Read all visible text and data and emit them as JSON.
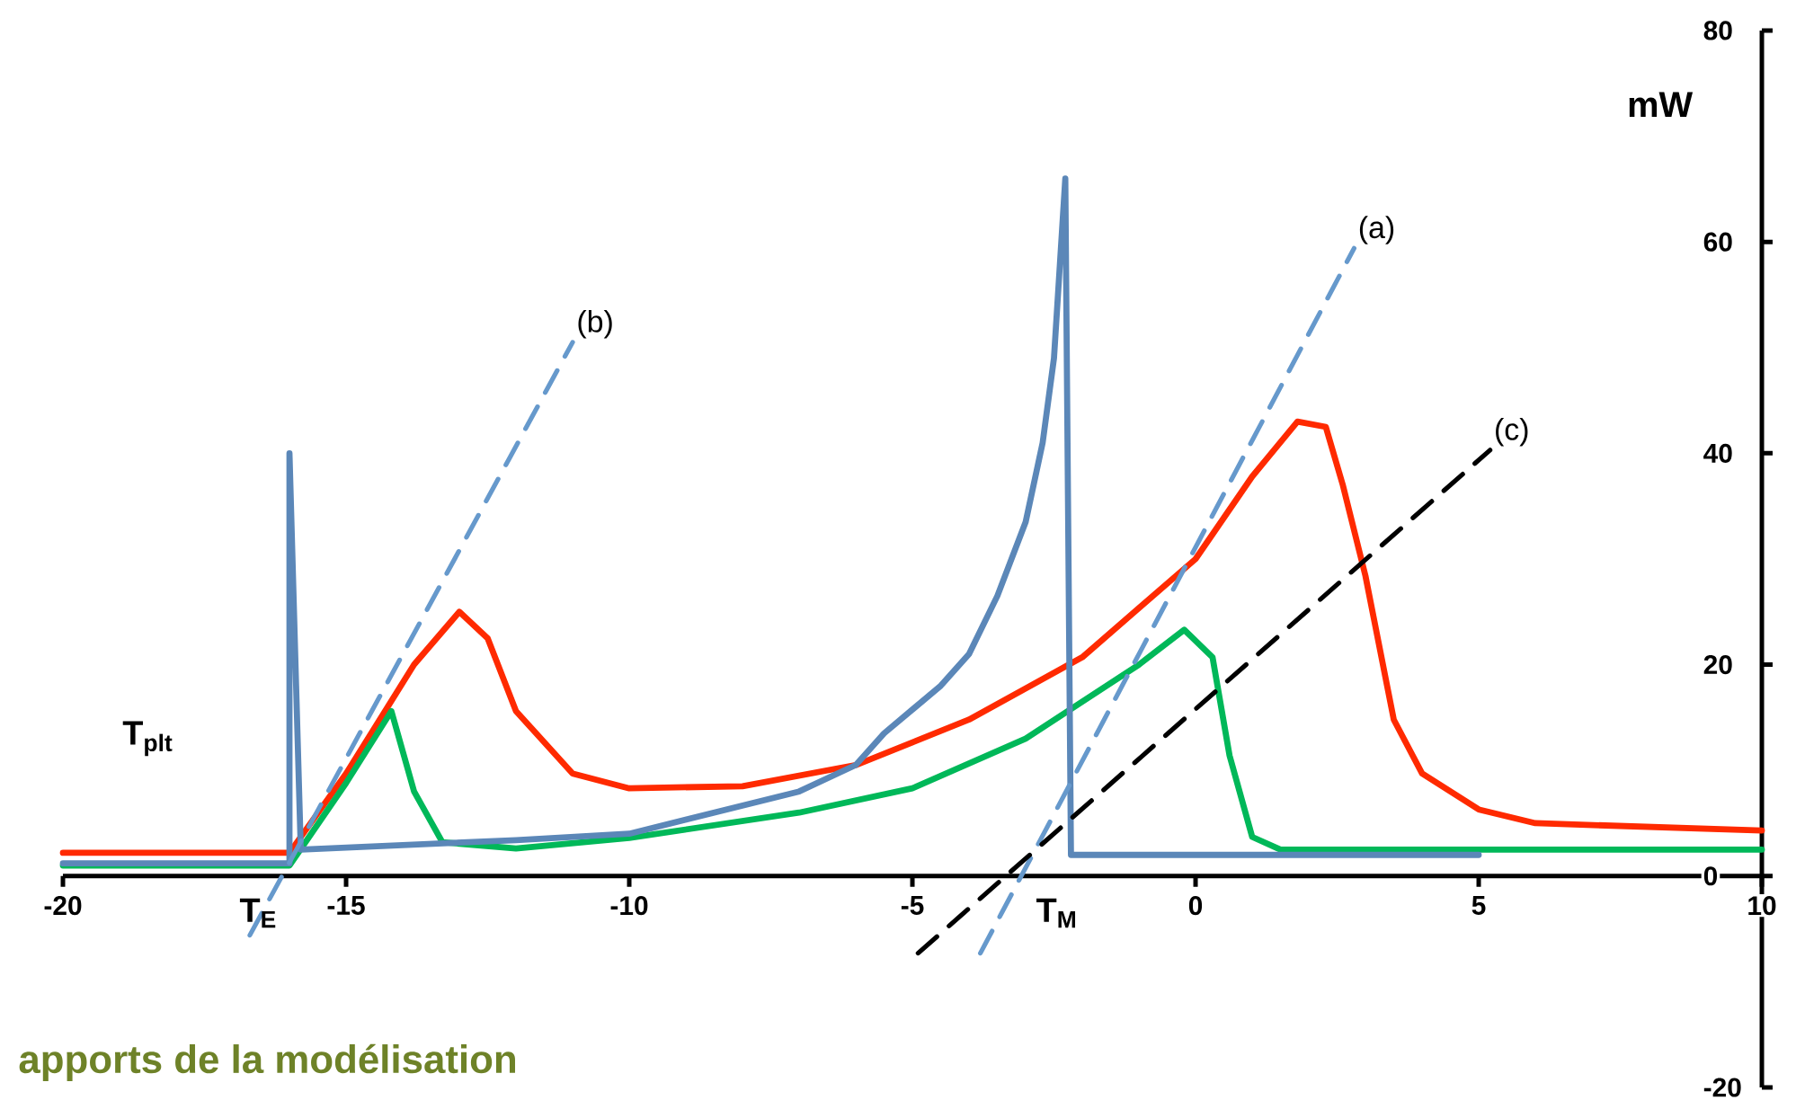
{
  "chart_data": {
    "type": "line",
    "ylabel": "mW",
    "xlim": [
      -20,
      10
    ],
    "xticks": [
      -20,
      -15,
      -10,
      -5,
      0,
      5,
      10
    ],
    "ylim": [
      -20,
      80
    ],
    "yticks": [
      -20,
      0,
      20,
      40,
      60,
      80
    ],
    "grid": false,
    "marker": "none",
    "line_style": "solid",
    "series": [
      {
        "color": "#ff2a00",
        "x": [
          -20,
          -16,
          -15,
          -13.8,
          -13,
          -12.5,
          -12,
          -11,
          -10,
          -8,
          -6,
          -4,
          -2,
          0,
          1,
          1.8,
          2.3,
          2.6,
          3,
          3.5,
          4,
          5,
          6,
          10
        ],
        "values": [
          2.2,
          2.2,
          9.7,
          20,
          25,
          22.5,
          15.6,
          9.7,
          8.3,
          8.5,
          10.5,
          14.8,
          20.7,
          30,
          37.8,
          43,
          42.5,
          37,
          28.4,
          14.8,
          9.7,
          6.3,
          5,
          4.3
        ]
      },
      {
        "color": "#00b859",
        "x": [
          -20,
          -16,
          -15,
          -14.2,
          -13.8,
          -13.3,
          -12,
          -10,
          -7,
          -5,
          -3,
          -1,
          -0.2,
          0.3,
          0.6,
          1,
          1.5,
          10
        ],
        "values": [
          1,
          1,
          8.8,
          15.6,
          8,
          3.2,
          2.6,
          3.6,
          6,
          8.3,
          13,
          20,
          23.3,
          20.7,
          11.4,
          3.7,
          2.5,
          2.5
        ]
      },
      {
        "color": "#5b87b8",
        "x": [
          -20,
          -16,
          -16,
          -15.8,
          -12,
          -10,
          -8.5,
          -7,
          -6,
          -5.5,
          -4.5,
          -4,
          -3.5,
          -3,
          -2.7,
          -2.5,
          -2.3,
          -2.2,
          5
        ],
        "values": [
          1.2,
          1.2,
          40,
          2.5,
          3.4,
          4,
          6,
          8,
          10.5,
          13.5,
          18,
          21,
          26.5,
          33.5,
          41,
          49,
          66,
          2,
          2
        ]
      },
      {
        "name": "(b)",
        "color": "#6699cc",
        "line_style": "dashed",
        "x": [
          -16.7,
          -11.0
        ],
        "values": [
          -5.6,
          50.5
        ]
      },
      {
        "name": "(a)",
        "color": "#6699cc",
        "line_style": "dashed",
        "x": [
          -3.8,
          2.8
        ],
        "values": [
          -7.3,
          59.4
        ]
      },
      {
        "name": "(c)",
        "color": "#000000",
        "line_style": "dashed",
        "x": [
          -4.9,
          5.2
        ],
        "values": [
          -7.3,
          40.3
        ]
      }
    ],
    "annotations": [
      "T$_{E}$",
      "T$_{M}$",
      "T$_{plt}$",
      "apports de la modélisation"
    ]
  }
}
